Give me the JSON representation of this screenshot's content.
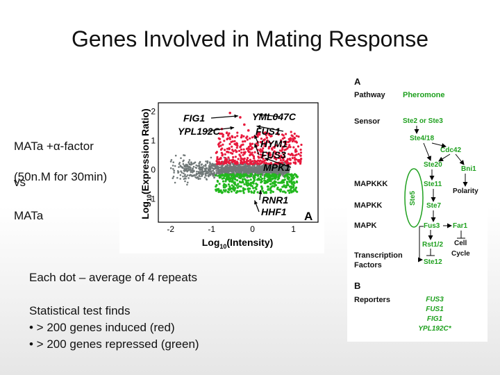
{
  "slide": {
    "title": "Genes Involved in Mating Response",
    "condition_lines": [
      "MATa +α-factor",
      "(50n.M for 30min)"
    ],
    "vs_label": "vs",
    "reference_label": "MATa",
    "note_line1": "Each dot – average of 4 repeats",
    "stat_heading": "Statistical test finds",
    "stat_bullets": [
      "• > 200 genes induced (red)",
      "• > 200 genes repressed (green)"
    ]
  },
  "colors": {
    "induced": "#e8193c",
    "repressed": "#22b81e",
    "unchanged": "#707878",
    "pathway_green": "#1ea01e"
  },
  "chart_data": {
    "type": "scatter",
    "panel_label": "A",
    "xlabel_base": "Log",
    "xlabel_sub": "10",
    "xlabel_rest": "(Intensity)",
    "ylabel_base": "Log",
    "ylabel_sub": "10",
    "ylabel_rest": "(Expression Ratio)",
    "xlim": [
      -2.3,
      1.6
    ],
    "ylim": [
      -1.8,
      2.3
    ],
    "x_ticks": [
      "-2",
      "-1",
      "0",
      "1"
    ],
    "x_tick_values": [
      -2,
      -1,
      0,
      1
    ],
    "y_ticks": [
      "2",
      "1",
      "0",
      "-1"
    ],
    "y_tick_values": [
      2,
      1,
      0,
      -1
    ],
    "annotations": [
      {
        "label": "FIG1",
        "x": -0.35,
        "y": 1.85
      },
      {
        "label": "YML047C",
        "x": 0.15,
        "y": 1.9
      },
      {
        "label": "YPL192C",
        "x": -0.45,
        "y": 1.45
      },
      {
        "label": "FUS1",
        "x": 0.1,
        "y": 1.5
      },
      {
        "label": "HYM1",
        "x": 0.05,
        "y": 1.2
      },
      {
        "label": "FUS3",
        "x": 0.05,
        "y": 0.9
      },
      {
        "label": "MPK1",
        "x": 0.3,
        "y": 0.4
      },
      {
        "label": "RNR1",
        "x": 0.2,
        "y": -0.7
      },
      {
        "label": "HHF1",
        "x": 0.05,
        "y": -1.05
      }
    ]
  },
  "pathway": {
    "panel_a": "A",
    "panel_b": "B",
    "header_left": "Pathway",
    "header_right": "Pheromone",
    "rows": [
      "Sensor",
      "MAPKKK",
      "MAPKK",
      "MAPK",
      "Transcription",
      "Factors",
      "Reporters"
    ],
    "components": [
      "Ste2 or Ste3",
      "Ste4/18",
      "Cdc42",
      "Ste20",
      "Bni1",
      "Ste11",
      "Polarity",
      "Ste5",
      "Ste7",
      "Fus3",
      "Far1",
      "Cell",
      "Cycle",
      "Rst1/2",
      "Ste12"
    ],
    "reporters": [
      "FUS3",
      "FUS1",
      "FIG1",
      "YPL192C*"
    ]
  }
}
